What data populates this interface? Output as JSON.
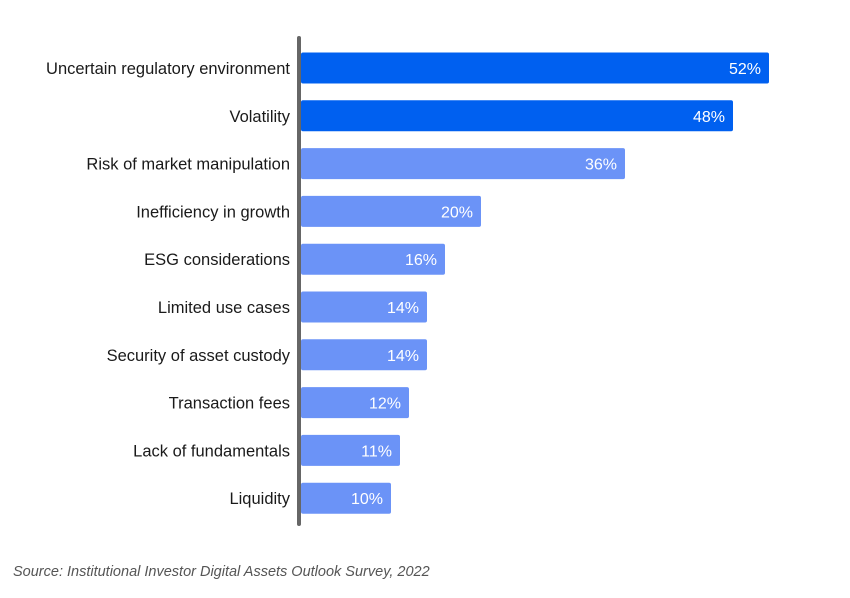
{
  "chart_data": {
    "type": "bar",
    "orientation": "horizontal",
    "categories": [
      "Uncertain regulatory environment",
      "Volatility",
      "Risk of market manipulation",
      "Inefficiency in growth",
      "ESG considerations",
      "Limited use cases",
      "Security of asset custody",
      "Transaction fees",
      "Lack of fundamentals",
      "Liquidity"
    ],
    "values": [
      52,
      48,
      36,
      20,
      16,
      14,
      14,
      12,
      11,
      10
    ],
    "value_labels": [
      "52%",
      "48%",
      "36%",
      "20%",
      "16%",
      "14%",
      "14%",
      "12%",
      "11%",
      "10%"
    ],
    "highlighted": [
      true,
      true,
      false,
      false,
      false,
      false,
      false,
      false,
      false,
      false
    ],
    "xlim": [
      0,
      52
    ],
    "grid": false,
    "title": "",
    "xlabel": "",
    "ylabel": ""
  },
  "colors": {
    "highlight": "#0060f0",
    "normal": "#6b93f7",
    "axis": "#666666",
    "label": "#1a1a1a",
    "value_text": "#ffffff"
  },
  "source": "Source: Institutional Investor Digital Assets Outlook Survey, 2022"
}
